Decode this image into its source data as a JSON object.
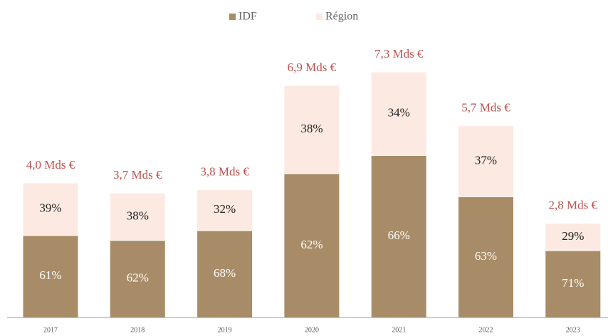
{
  "chart_data": {
    "type": "bar",
    "stacked": true,
    "categories": [
      "2017",
      "2018",
      "2019",
      "2020",
      "2021",
      "2022",
      "2023"
    ],
    "values": [
      4.0,
      3.7,
      3.8,
      6.9,
      7.3,
      5.7,
      2.8
    ],
    "value_labels": [
      "4,0 Mds €",
      "3,7 Mds €",
      "3,8 Mds €",
      "6,9 Mds €",
      "7,3 Mds €",
      "5,7 Mds €",
      "2,8 Mds €"
    ],
    "value_label_color": "#c0504d",
    "series": [
      {
        "name": "IDF",
        "color": "#a88c67",
        "text_color": "#ffffff",
        "values": [
          61,
          62,
          68,
          62,
          66,
          63,
          71
        ],
        "value_labels": [
          "61%",
          "62%",
          "68%",
          "62%",
          "66%",
          "63%",
          "71%"
        ]
      },
      {
        "name": "Région",
        "color": "#fbe9e2",
        "text_color": "#222222",
        "values": [
          39,
          38,
          32,
          38,
          34,
          37,
          29
        ],
        "value_labels": [
          "39%",
          "38%",
          "32%",
          "38%",
          "34%",
          "37%",
          "29%"
        ]
      }
    ],
    "legend": "top"
  }
}
